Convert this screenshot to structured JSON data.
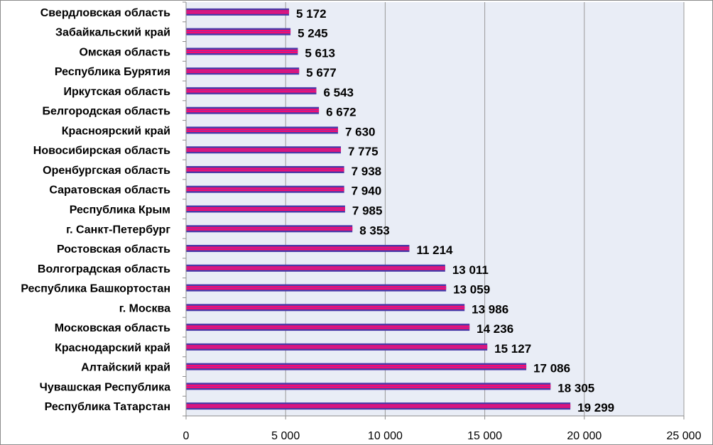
{
  "chart_data": {
    "type": "bar",
    "orientation": "horizontal",
    "categories": [
      "Свердловская область",
      "Забайкальский край",
      "Омская область",
      "Республика Бурятия",
      "Иркутская область",
      "Белгородская область",
      "Красноярский край",
      "Новосибирская область",
      "Оренбургская область",
      "Саратовская  область",
      "Республика Крым",
      "г. Санкт-Петербург",
      "Ростовская область",
      "Волгоградская  область",
      "Республика Башкортостан",
      "г. Москва",
      "Московская область",
      "Краснодарский край",
      "Алтайский край",
      "Чувашская  Республика",
      "Республика Татарстан"
    ],
    "values": [
      5172,
      5245,
      5613,
      5677,
      6543,
      6672,
      7630,
      7775,
      7938,
      7940,
      7985,
      8353,
      11214,
      13011,
      13059,
      13986,
      14236,
      15127,
      17086,
      18305,
      19299
    ],
    "value_labels": [
      "5 172",
      "5 245",
      "5 613",
      "5 677",
      "6 543",
      "6 672",
      "7 630",
      "7 775",
      "7 938",
      "7 940",
      "7 985",
      "8 353",
      "11 214",
      "13 011",
      "13 059",
      "13 986",
      "14 236",
      "15 127",
      "17 086",
      "18 305",
      "19 299"
    ],
    "xlim": [
      0,
      25000
    ],
    "x_ticks": [
      0,
      5000,
      10000,
      15000,
      20000,
      25000
    ],
    "x_tick_labels": [
      "0",
      "5 000",
      "10 000",
      "15 000",
      "20 000",
      "25 000"
    ],
    "title": "",
    "xlabel": "",
    "ylabel": "",
    "grid": "vertical",
    "legend": "none",
    "colors": {
      "plot_background": "#e9edf6",
      "bar_outer": "#4a3aa8",
      "bar_inner": "#ff0a6c",
      "gridline": "#9a9a9a",
      "axis": "#8c8c8c"
    }
  }
}
